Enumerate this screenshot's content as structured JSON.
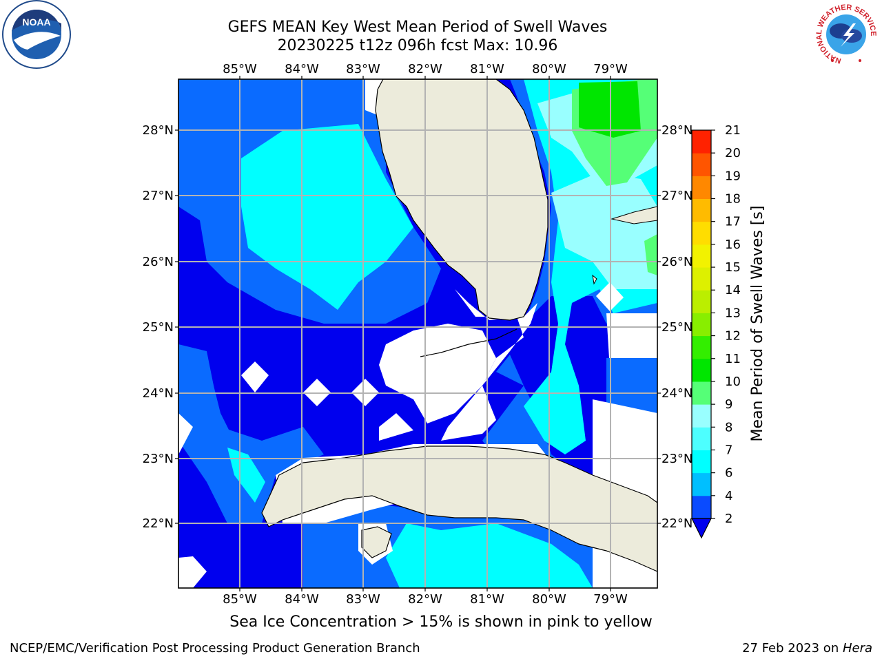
{
  "header": {
    "title_line1": "GEFS MEAN Key West Mean Period of Swell Waves",
    "title_line2": "20230225 t12z 096h fcst   Max: 10.96"
  },
  "map": {
    "lon_labels": [
      "85°W",
      "84°W",
      "83°W",
      "82°W",
      "81°W",
      "80°W",
      "79°W"
    ],
    "lat_labels": [
      "28°N",
      "27°N",
      "26°N",
      "25°N",
      "24°N",
      "23°N",
      "22°N"
    ],
    "land_color": "#ecebdb",
    "grid_color": "#b3b3b3"
  },
  "colorbar": {
    "label": "Mean Period of Swell Waves [s]",
    "ticks": [
      "2",
      "4",
      "6",
      "7",
      "8",
      "9",
      "10",
      "11",
      "12",
      "13",
      "14",
      "15",
      "16",
      "17",
      "18",
      "19",
      "20",
      "21"
    ],
    "colors": [
      "#0a4bff",
      "#00bfff",
      "#00ffff",
      "#4dffff",
      "#99ffff",
      "#55ff77",
      "#00e600",
      "#33ee00",
      "#88ee00",
      "#bbee00",
      "#ddf000",
      "#f2f200",
      "#ffdd00",
      "#ffbb00",
      "#ff8800",
      "#ff5500",
      "#ff2200"
    ],
    "extend_color": "#0000ee"
  },
  "caption": "Sea Ice Concentration > 15% is shown in pink to yellow",
  "footer": {
    "left": "NCEP/EMC/Verification Post Processing Product Generation Branch",
    "right_prefix": "27 Feb 2023 on ",
    "right_machine": "Hera"
  },
  "logos": {
    "noaa": "NOAA",
    "nws_ring": "NATIONAL WEATHER SERVICE"
  }
}
